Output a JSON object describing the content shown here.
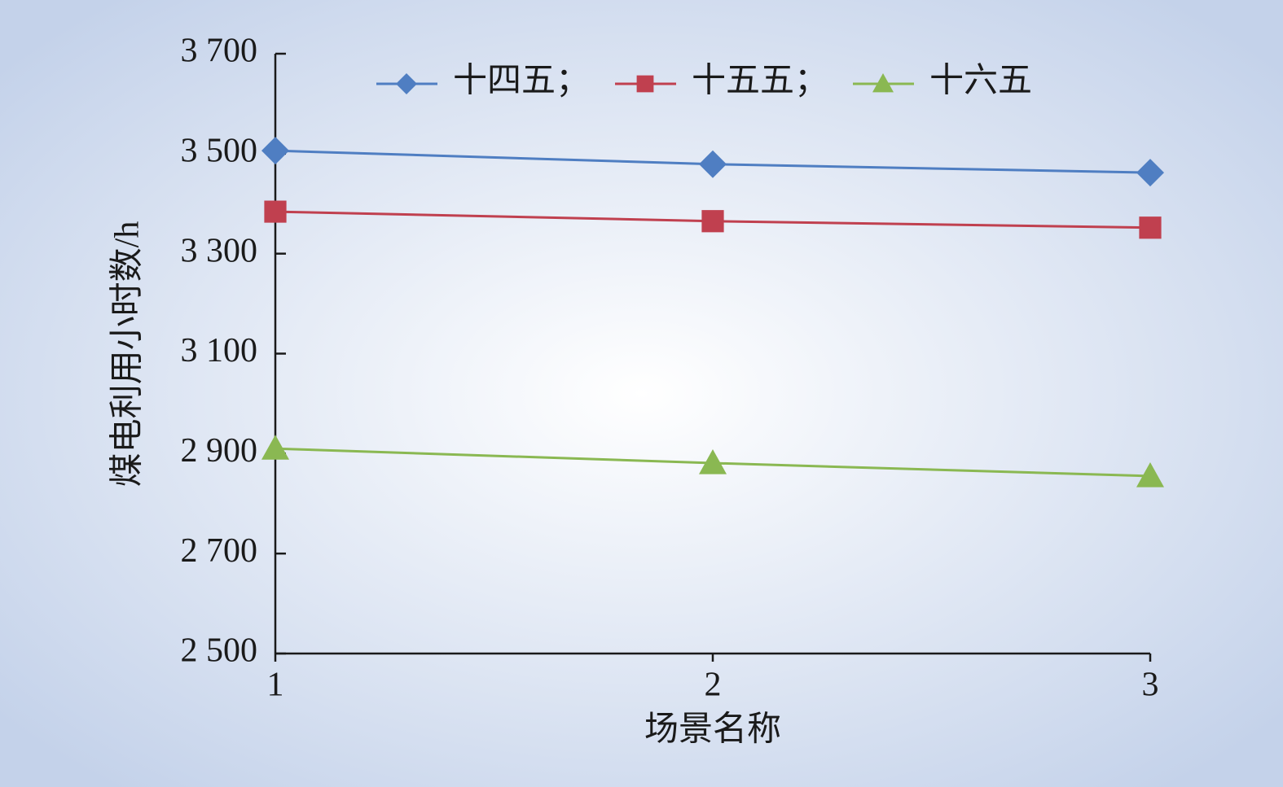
{
  "chart_data": {
    "type": "line",
    "x_label": "场景名称",
    "y_label": "煤电利用小时数/h",
    "x": [
      1,
      2,
      3
    ],
    "series": [
      {
        "name": "十四五；",
        "color": "#4f7ec2",
        "marker": "diamond",
        "values": [
          3506,
          3479,
          3462
        ]
      },
      {
        "name": "十五五；",
        "color": "#c0404f",
        "marker": "square",
        "values": [
          3384,
          3365,
          3352
        ]
      },
      {
        "name": "十六五",
        "color": "#8ab852",
        "marker": "triangle",
        "values": [
          2910,
          2881,
          2855
        ]
      }
    ],
    "xlim": [
      1,
      3
    ],
    "xticks": [
      1,
      2,
      3
    ],
    "ylim": [
      2500,
      3700
    ],
    "yticks": [
      {
        "value": 2500,
        "label": "2 500"
      },
      {
        "value": 2700,
        "label": "2 700"
      },
      {
        "value": 2900,
        "label": "2 900"
      },
      {
        "value": 3100,
        "label": "3 100"
      },
      {
        "value": 3300,
        "label": "3 300"
      },
      {
        "value": 3500,
        "label": "3 500"
      },
      {
        "value": 3700,
        "label": "3 700"
      }
    ],
    "legend": "top"
  }
}
